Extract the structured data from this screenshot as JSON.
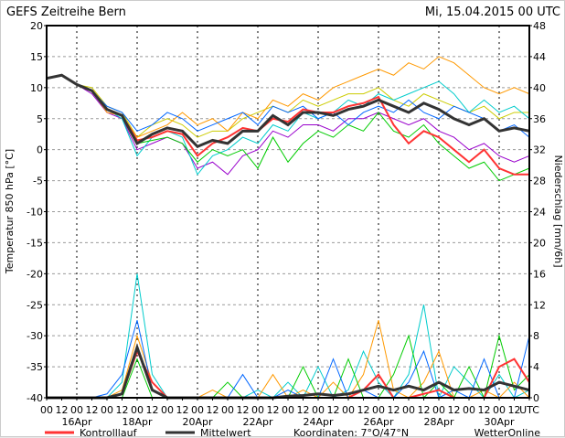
{
  "header": {
    "title": "GEFS Zeitreihe Bern",
    "date": "Mi, 15.04.2015 00 UTC"
  },
  "footer": {
    "control_label": "Kontrolllauf",
    "mean_label": "Mittelwert",
    "coords": "Koordinaten: 7°O/47°N",
    "brand": "WetterOnline"
  },
  "colors": {
    "control": "#ff3333",
    "mean": "#333333"
  },
  "chart_data": {
    "type": "line",
    "ylabel": "Temperatur 850 hPa [°C]",
    "y2label": "Niederschlag [mm/6h]",
    "ylim": [
      -40,
      20
    ],
    "y2lim": [
      0,
      48
    ],
    "yticks": [
      20,
      15,
      10,
      5,
      0,
      -5,
      -10,
      -15,
      -20,
      -25,
      -30,
      -35,
      -40
    ],
    "y2ticks": [
      48,
      44,
      40,
      36,
      32,
      28,
      24,
      20,
      16,
      12,
      8,
      4,
      0
    ],
    "x_hour_labels": [
      "00",
      "12",
      "00",
      "12",
      "00",
      "12",
      "00",
      "12",
      "00",
      "12",
      "00",
      "12",
      "00",
      "12",
      "00",
      "12",
      "00",
      "12",
      "00",
      "12",
      "00",
      "12",
      "00",
      "12",
      "00",
      "12",
      "00",
      "12",
      "00",
      "12",
      "00",
      "12",
      "UTC"
    ],
    "x_date_labels": [
      {
        "day": 1,
        "label": "16Apr"
      },
      {
        "day": 3,
        "label": "18Apr"
      },
      {
        "day": 5,
        "label": "20Apr"
      },
      {
        "day": 7,
        "label": "22Apr"
      },
      {
        "day": 9,
        "label": "24Apr"
      },
      {
        "day": 11,
        "label": "26Apr"
      },
      {
        "day": 13,
        "label": "28Apr"
      },
      {
        "day": 15,
        "label": "30Apr"
      }
    ],
    "step_hours": 12,
    "mean_temp": [
      11.5,
      12,
      10.5,
      9.5,
      6.5,
      5.5,
      1,
      2.5,
      3.5,
      3,
      0.5,
      1.5,
      1,
      3,
      3,
      5.5,
      4,
      6,
      6,
      5.5,
      6.5,
      7,
      8,
      7,
      6,
      7.5,
      6.5,
      5,
      4,
      5,
      3,
      3.5,
      3
    ],
    "control_temp": [
      11.5,
      12,
      10.5,
      9.5,
      6.5,
      5.5,
      1.5,
      2,
      3,
      2.5,
      -1,
      1,
      2,
      3.5,
      3,
      5,
      4.5,
      6.5,
      6,
      6,
      7,
      7.5,
      8.5,
      4,
      1,
      3,
      2,
      0,
      -2,
      0,
      -3,
      -4,
      -4
    ],
    "members_temp": [
      [
        11.5,
        12,
        10.5,
        10,
        7,
        6,
        2,
        4,
        5,
        4,
        2,
        3,
        3,
        5,
        6,
        7,
        6,
        8,
        7,
        8,
        9,
        9,
        10,
        8,
        7,
        9,
        8,
        7,
        6,
        7,
        5,
        6,
        6
      ],
      [
        11.5,
        12,
        10.5,
        9,
        6,
        5,
        0,
        1,
        2,
        1,
        -3,
        -2,
        -4,
        -1,
        0,
        3,
        2,
        4,
        4,
        3,
        5,
        5,
        6,
        5,
        4,
        5,
        3,
        2,
        0,
        1,
        -1,
        -2,
        -1
      ],
      [
        11.5,
        12,
        10.5,
        9.5,
        6.5,
        5,
        -1,
        2,
        3,
        2,
        -4,
        -1,
        0,
        2,
        1,
        4,
        3,
        6,
        5,
        6,
        8,
        7,
        9,
        8,
        9,
        10,
        11,
        9,
        6,
        8,
        6,
        7,
        5
      ],
      [
        11.5,
        12,
        10.5,
        9.5,
        6,
        5.5,
        2,
        3,
        4,
        6,
        4,
        5,
        3,
        6,
        5,
        8,
        7,
        9,
        8,
        10,
        11,
        12,
        13,
        12,
        14,
        13,
        15,
        14,
        12,
        10,
        9,
        10,
        9
      ],
      [
        11.5,
        12,
        10.5,
        9.5,
        6.5,
        5.5,
        1,
        1.5,
        2,
        1,
        -2,
        0,
        -1,
        0,
        -3,
        2,
        -2,
        1,
        3,
        2,
        4,
        3,
        6,
        3,
        2,
        4,
        1,
        -1,
        -3,
        -2,
        -5,
        -4,
        -3
      ],
      [
        11.5,
        12,
        10.5,
        9.5,
        7,
        6,
        3,
        4,
        6,
        5,
        3,
        4,
        5,
        6,
        4,
        7,
        6,
        7,
        5,
        6,
        4,
        6,
        7,
        6,
        8,
        6,
        5,
        7,
        6,
        5,
        3,
        4,
        2
      ]
    ],
    "mean_precip": [
      0,
      0,
      0,
      0,
      0,
      0.5,
      6.5,
      1,
      0,
      0,
      0,
      0,
      0,
      0,
      0,
      0,
      0.2,
      0.3,
      0.5,
      0.3,
      0.5,
      1,
      1.5,
      1,
      1.5,
      1,
      2,
      1,
      1.2,
      1,
      2,
      1.5,
      1
    ],
    "control_precip": [
      0,
      0,
      0,
      0,
      0,
      0.5,
      6,
      2,
      0,
      0,
      0,
      0,
      0,
      0,
      0,
      0,
      0,
      0,
      0,
      0,
      0,
      1,
      3,
      0,
      0,
      0.5,
      1,
      0,
      0,
      0,
      4,
      5,
      2
    ],
    "members_precip": [
      [
        0,
        0,
        0,
        0,
        0,
        2,
        16,
        3,
        0,
        0,
        0,
        0,
        0,
        0,
        1,
        0,
        2,
        0,
        4,
        0,
        1,
        6,
        2,
        0,
        3,
        12,
        0,
        4,
        2,
        0,
        3,
        0,
        1
      ],
      [
        0,
        0,
        0,
        0,
        0,
        1,
        8,
        2,
        0,
        0,
        0,
        1,
        0,
        0,
        0,
        3,
        0,
        1,
        0,
        2,
        0,
        3,
        10,
        1,
        0,
        2,
        6,
        0,
        0,
        1,
        0,
        2,
        0
      ],
      [
        0,
        0,
        0,
        0,
        0,
        0,
        5,
        0,
        0,
        0,
        0,
        0,
        2,
        0,
        0,
        0,
        0,
        4,
        0,
        0,
        5,
        0,
        0,
        3,
        8,
        0,
        2,
        0,
        4,
        0,
        8,
        1,
        3
      ],
      [
        0,
        0,
        0,
        0,
        0.5,
        3,
        10,
        1,
        0,
        0,
        0,
        0,
        0,
        3,
        0,
        0,
        1,
        0,
        0,
        5,
        0,
        1,
        0,
        0,
        2,
        6,
        0,
        1,
        0,
        5,
        0,
        0,
        8
      ]
    ],
    "member_colors": [
      "#cccc00",
      "#9900cc",
      "#00cccc",
      "#ff9900",
      "#00cc00",
      "#0066ff"
    ]
  }
}
